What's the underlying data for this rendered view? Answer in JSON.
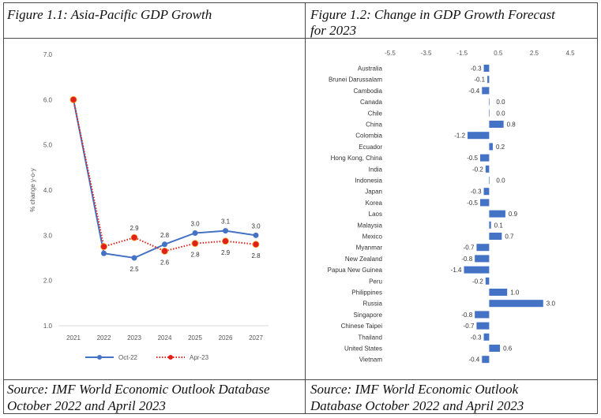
{
  "figures": {
    "left": {
      "caption": "Figure 1.1: Asia-Pacific GDP Growth",
      "source_line1": "Source: IMF World Economic Outlook Database",
      "source_line2": "October 2022 and April 2023"
    },
    "right": {
      "caption_line1": "Figure 1.2: Change in GDP Growth Forecast",
      "caption_line2": "for 2023",
      "source_line1": "Source: IMF World Economic Outlook",
      "source_line2": "Database October 2022 and April 2023"
    }
  },
  "chart_data": [
    {
      "type": "line",
      "title": "",
      "xlabel": "",
      "ylabel": "% change y-o-y",
      "ylim": [
        1.0,
        7.0
      ],
      "yticks": [
        "1.0",
        "2.0",
        "3.0",
        "4.0",
        "5.0",
        "6.0",
        "7.0"
      ],
      "categories": [
        "2021",
        "2022",
        "2023",
        "2024",
        "2025",
        "2026",
        "2027"
      ],
      "series": [
        {
          "name": "Oct-22",
          "color": "#4472c4",
          "style": "solid",
          "values": [
            6.0,
            2.6,
            2.5,
            2.8,
            3.05,
            3.1,
            3.0
          ],
          "labels": [
            "",
            "",
            "2.5",
            "2.8",
            "3.0",
            "3.1",
            "3.0"
          ]
        },
        {
          "name": "Apr-23",
          "color": "#e0201b",
          "style": "dotted",
          "values": [
            6.0,
            2.75,
            2.95,
            2.65,
            2.82,
            2.87,
            2.8
          ],
          "labels": [
            "",
            "",
            "2.9",
            "2.6",
            "2.8",
            "2.9",
            "2.8"
          ]
        }
      ],
      "grid": false,
      "legend": "bottom"
    },
    {
      "type": "bar",
      "orientation": "horizontal",
      "title": "",
      "xlim": [
        -5.5,
        4.5
      ],
      "xticks": [
        "-5.5",
        "-3.5",
        "-1.5",
        "0.5",
        "2.5",
        "4.5"
      ],
      "color": "#4472c4",
      "categories": [
        "Australia",
        "Brunei Darussalam",
        "Cambodia",
        "Canada",
        "Chile",
        "China",
        "Colombia",
        "Ecuador",
        "Hong Kong, China",
        "India",
        "Indonesia",
        "Japan",
        "Korea",
        "Laos",
        "Malaysia",
        "Mexico",
        "Myanmar",
        "New Zealand",
        "Papua New Guinea",
        "Peru",
        "Philippines",
        "Russia",
        "Singapore",
        "Chinese Taipei",
        "Thailand",
        "United States",
        "Vietnam"
      ],
      "values": [
        -0.3,
        -0.1,
        -0.4,
        0.0,
        0.0,
        0.8,
        -1.2,
        0.2,
        -0.5,
        -0.2,
        0.0,
        -0.3,
        -0.5,
        0.9,
        0.1,
        0.7,
        -0.7,
        -0.8,
        -1.4,
        -0.2,
        1.0,
        3.0,
        -0.8,
        -0.7,
        -0.3,
        0.6,
        -0.4
      ],
      "labels": [
        "-0.3",
        "-0.1",
        "-0.4",
        "0.0",
        "0.0",
        "0.8",
        "-1.2",
        "0.2",
        "-0.5",
        "-0.2",
        "0.0",
        "-0.3",
        "-0.5",
        "0.9",
        "0.1",
        "0.7",
        "-0.7",
        "-0.8",
        "-1.4",
        "-0.2",
        "1.0",
        "3.0",
        "-0.8",
        "-0.7",
        "-0.3",
        "0.6",
        "-0.4"
      ],
      "grid": false
    }
  ]
}
